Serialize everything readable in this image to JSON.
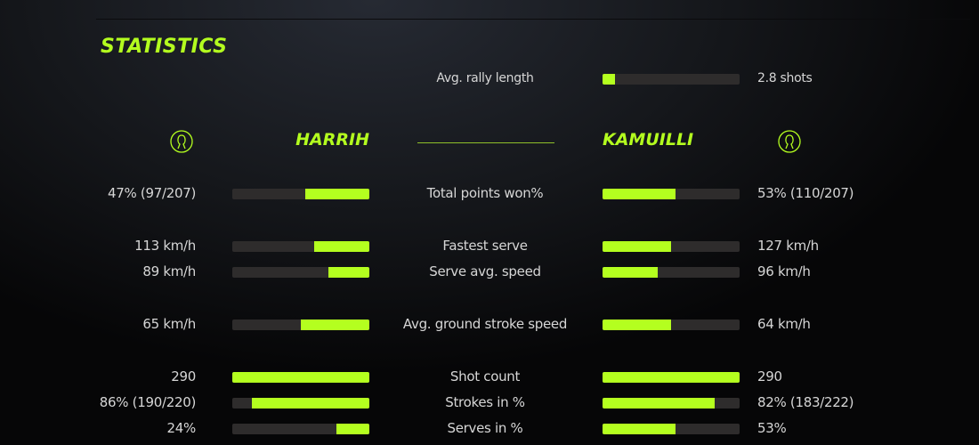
{
  "title": "STATISTICS",
  "accent_color": "#b4ff1f",
  "rally": {
    "label": "Avg. rally length",
    "value": "2.8 shots",
    "fill": 0.09
  },
  "players": {
    "left": {
      "name": "HARRIH",
      "icon": "user-icon"
    },
    "right": {
      "name": "KAMUILLI",
      "icon": "user-icon"
    }
  },
  "stats": [
    {
      "label": "Total points won%",
      "left": "47% (97/207)",
      "right": "53% (110/207)",
      "left_fill": 0.47,
      "right_fill": 0.53
    },
    {
      "label": "Fastest serve",
      "left": "113 km/h",
      "right": "127 km/h",
      "left_fill": 0.4,
      "right_fill": 0.5
    },
    {
      "label": "Serve avg. speed",
      "left": "89 km/h",
      "right": "96 km/h",
      "left_fill": 0.3,
      "right_fill": 0.4
    },
    {
      "label": "Avg. ground stroke speed",
      "left": "65 km/h",
      "right": "64 km/h",
      "left_fill": 0.5,
      "right_fill": 0.5
    },
    {
      "label": "Shot count",
      "left": "290",
      "right": "290",
      "left_fill": 1.0,
      "right_fill": 1.0
    },
    {
      "label": "Strokes in %",
      "left": "86% (190/220)",
      "right": "82% (183/222)",
      "left_fill": 0.86,
      "right_fill": 0.82
    },
    {
      "label": "Serves in %",
      "left": "24%",
      "right": "53%",
      "left_fill": 0.24,
      "right_fill": 0.53
    }
  ]
}
